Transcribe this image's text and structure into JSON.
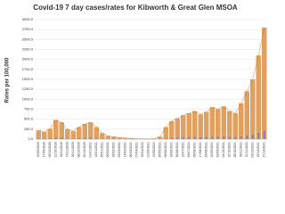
{
  "chart_data": {
    "type": "bar",
    "title": "Covid-19 7 day cases/rates for Kibworth & Great Glen MSOA",
    "y_label": "Rates per 100,000",
    "categories": [
      "15/09/2020",
      "27/09/2020",
      "09/10/2020",
      "21/10/2020",
      "02/11/2020",
      "14/11/2020",
      "26/11/2020",
      "08/12/2020",
      "20/12/2020",
      "01/01/2021",
      "13/01/2021",
      "25/01/2021",
      "06/02/2021",
      "18/02/2021",
      "02/03/2021",
      "14/03/2021",
      "26/03/2021",
      "07/04/2021",
      "19/04/2021",
      "01/05/2021",
      "13/05/2021",
      "25/05/2021",
      "06/06/2021",
      "18/06/2021",
      "30/06/2021",
      "12/07/2021",
      "24/07/2021",
      "05/08/2021",
      "17/08/2021",
      "29/08/2021",
      "10/09/2021",
      "22/09/2021",
      "04/10/2021",
      "16/10/2021",
      "28/10/2021",
      "09/11/2021",
      "21/11/2021",
      "03/12/2021",
      "15/12/2021",
      "27/12/2021"
    ],
    "series": [
      {
        "color": "#e0a060",
        "values": [
          220,
          180,
          260,
          480,
          420,
          250,
          200,
          300,
          380,
          420,
          300,
          150,
          80,
          60,
          40,
          30,
          20,
          10,
          5,
          5,
          10,
          60,
          300,
          450,
          520,
          600,
          650,
          700,
          620,
          680,
          800,
          750,
          820,
          700,
          650,
          900,
          1200,
          1500,
          2100,
          2800
        ]
      },
      {
        "color": "#8a7ab8",
        "values": [
          15,
          12,
          18,
          35,
          30,
          18,
          15,
          22,
          28,
          30,
          22,
          11,
          6,
          4,
          3,
          2,
          1,
          1,
          0,
          0,
          1,
          4,
          22,
          33,
          38,
          44,
          48,
          52,
          45,
          50,
          58,
          55,
          60,
          52,
          48,
          66,
          88,
          110,
          155,
          205
        ]
      }
    ],
    "ylim": [
      0,
      3000
    ],
    "yticks": [
      {
        "value": 0,
        "label": "0.0"
      },
      {
        "value": 250,
        "label": "250.0"
      },
      {
        "value": 500,
        "label": "500.0"
      },
      {
        "value": 750,
        "label": "750.0"
      },
      {
        "value": 1000,
        "label": "1000.0"
      },
      {
        "value": 1250,
        "label": "1250.0"
      },
      {
        "value": 1500,
        "label": "1500.0"
      },
      {
        "value": 1750,
        "label": "1750.0"
      },
      {
        "value": 2000,
        "label": "2000.0"
      },
      {
        "value": 2250,
        "label": "2250.0"
      },
      {
        "value": 2500,
        "label": "2500.0"
      },
      {
        "value": 2750,
        "label": "2750.0"
      },
      {
        "value": 3000,
        "label": "3000.0"
      }
    ],
    "grid": true
  }
}
